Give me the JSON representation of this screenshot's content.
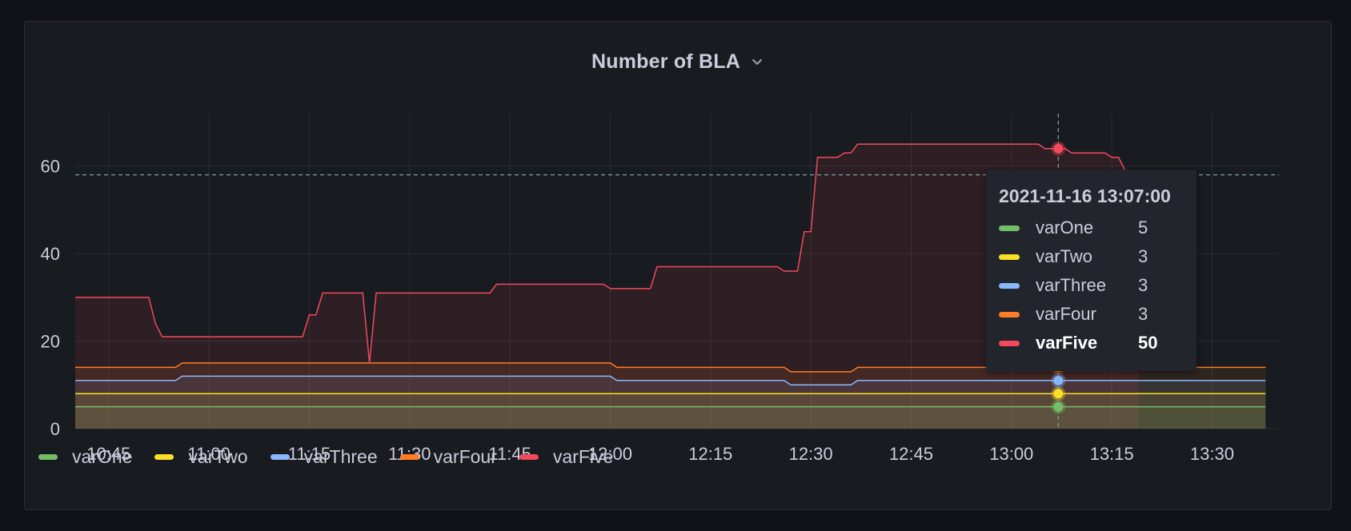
{
  "panel": {
    "title": "Number of BLA"
  },
  "chart_data": {
    "type": "line",
    "title": "Number of BLA",
    "x_ticks": [
      "10:45",
      "11:00",
      "11:15",
      "11:30",
      "11:45",
      "12:00",
      "12:15",
      "12:30",
      "12:45",
      "13:00",
      "13:15",
      "13:30"
    ],
    "y_ticks": [
      "0",
      "20",
      "40",
      "60"
    ],
    "ylim": [
      0,
      72
    ],
    "xlim": [
      "10:40",
      "13:40"
    ],
    "grid": true,
    "legend_position": "bottom-left",
    "fill": true,
    "crosshair": {
      "x": "13:07",
      "y": 58
    },
    "series": [
      {
        "name": "varOne",
        "color": "#73bf69",
        "points": [
          [
            "10:40",
            5
          ],
          [
            "13:38",
            5
          ]
        ]
      },
      {
        "name": "varTwo",
        "color": "#fade2a",
        "points": [
          [
            "10:40",
            8
          ],
          [
            "13:38",
            8
          ]
        ]
      },
      {
        "name": "varThree",
        "color": "#8ab8ff",
        "points": [
          [
            "10:40",
            11
          ],
          [
            "10:55",
            11
          ],
          [
            "10:56",
            12
          ],
          [
            "12:00",
            12
          ],
          [
            "12:01",
            11
          ],
          [
            "12:26",
            11
          ],
          [
            "12:27",
            10
          ],
          [
            "12:36",
            10
          ],
          [
            "12:37",
            11
          ],
          [
            "13:38",
            11
          ]
        ]
      },
      {
        "name": "varFour",
        "color": "#ff7d24",
        "points": [
          [
            "10:40",
            14
          ],
          [
            "10:55",
            14
          ],
          [
            "10:56",
            15
          ],
          [
            "12:00",
            15
          ],
          [
            "12:01",
            14
          ],
          [
            "12:26",
            14
          ],
          [
            "12:27",
            13
          ],
          [
            "12:36",
            13
          ],
          [
            "12:37",
            14
          ],
          [
            "13:38",
            14
          ]
        ]
      },
      {
        "name": "varFive",
        "color": "#f2495c",
        "points": [
          [
            "10:40",
            30
          ],
          [
            "10:51",
            30
          ],
          [
            "10:52",
            24
          ],
          [
            "10:53",
            21
          ],
          [
            "11:14",
            21
          ],
          [
            "11:15",
            26
          ],
          [
            "11:16",
            26
          ],
          [
            "11:17",
            31
          ],
          [
            "11:23",
            31
          ],
          [
            "11:24",
            15
          ],
          [
            "11:25",
            31
          ],
          [
            "11:42",
            31
          ],
          [
            "11:43",
            33
          ],
          [
            "11:59",
            33
          ],
          [
            "12:00",
            32
          ],
          [
            "12:06",
            32
          ],
          [
            "12:07",
            37
          ],
          [
            "12:25",
            37
          ],
          [
            "12:26",
            36
          ],
          [
            "12:28",
            36
          ],
          [
            "12:29",
            45
          ],
          [
            "12:30",
            45
          ],
          [
            "12:31",
            62
          ],
          [
            "12:34",
            62
          ],
          [
            "12:35",
            63
          ],
          [
            "12:36",
            63
          ],
          [
            "12:37",
            65
          ],
          [
            "13:04",
            65
          ],
          [
            "13:05",
            64
          ],
          [
            "13:07",
            64
          ],
          [
            "13:08",
            64
          ],
          [
            "13:09",
            63
          ],
          [
            "13:14",
            63
          ],
          [
            "13:15",
            62
          ],
          [
            "13:16",
            62
          ],
          [
            "13:17",
            59
          ],
          [
            "13:18",
            55
          ],
          [
            "13:19",
            53
          ]
        ]
      }
    ]
  },
  "tooltip": {
    "time": "2021-11-16 13:07:00",
    "rows": [
      {
        "name": "varOne",
        "value": "5",
        "color": "#73bf69"
      },
      {
        "name": "varTwo",
        "value": "3",
        "color": "#fade2a"
      },
      {
        "name": "varThree",
        "value": "3",
        "color": "#8ab8ff"
      },
      {
        "name": "varFour",
        "value": "3",
        "color": "#ff7d24"
      },
      {
        "name": "varFive",
        "value": "50",
        "color": "#f2495c",
        "active": true
      }
    ]
  },
  "legend": [
    {
      "name": "varOne",
      "color": "#73bf69"
    },
    {
      "name": "varTwo",
      "color": "#fade2a"
    },
    {
      "name": "varThree",
      "color": "#8ab8ff"
    },
    {
      "name": "varFour",
      "color": "#ff7d24"
    },
    {
      "name": "varFive",
      "color": "#f2495c"
    }
  ]
}
